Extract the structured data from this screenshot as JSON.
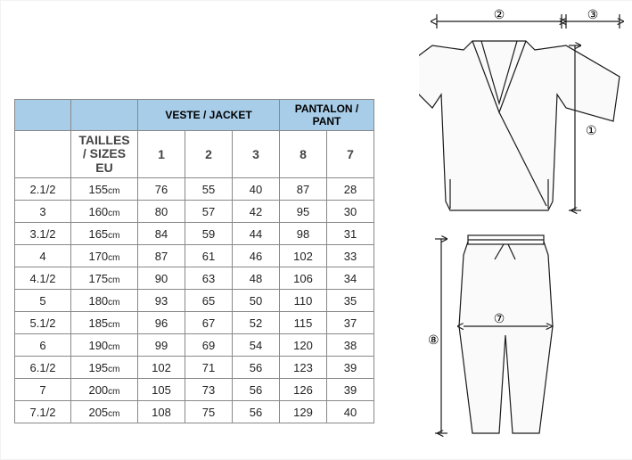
{
  "headers": {
    "jacket": "VESTE / JACKET",
    "pant": "PANTALON / PANT",
    "sizes_label": "TAILLES / SIZES EU"
  },
  "cols": {
    "jacket": [
      "1",
      "2",
      "3"
    ],
    "pant": [
      "8",
      "7"
    ]
  },
  "rows": [
    {
      "size": "2.1/2",
      "cm": "155",
      "v": [
        "76",
        "55",
        "40",
        "87",
        "28"
      ]
    },
    {
      "size": "3",
      "cm": "160",
      "v": [
        "80",
        "57",
        "42",
        "95",
        "30"
      ]
    },
    {
      "size": "3.1/2",
      "cm": "165",
      "v": [
        "84",
        "59",
        "44",
        "98",
        "31"
      ]
    },
    {
      "size": "4",
      "cm": "170",
      "v": [
        "87",
        "61",
        "46",
        "102",
        "33"
      ]
    },
    {
      "size": "4.1/2",
      "cm": "175",
      "v": [
        "90",
        "63",
        "48",
        "106",
        "34"
      ]
    },
    {
      "size": "5",
      "cm": "180",
      "v": [
        "93",
        "65",
        "50",
        "110",
        "35"
      ]
    },
    {
      "size": "5.1/2",
      "cm": "185",
      "v": [
        "96",
        "67",
        "52",
        "115",
        "37"
      ]
    },
    {
      "size": "6",
      "cm": "190",
      "v": [
        "99",
        "69",
        "54",
        "120",
        "38"
      ]
    },
    {
      "size": "6.1/2",
      "cm": "195",
      "v": [
        "102",
        "71",
        "56",
        "123",
        "39"
      ]
    },
    {
      "size": "7",
      "cm": "200",
      "v": [
        "105",
        "73",
        "56",
        "126",
        "39"
      ]
    },
    {
      "size": "7.1/2",
      "cm": "205",
      "v": [
        "108",
        "75",
        "56",
        "129",
        "40"
      ]
    }
  ],
  "diagram_labels": {
    "m1": "①",
    "m2": "②",
    "m3": "③",
    "m7": "⑦",
    "m8": "⑧"
  },
  "colors": {
    "header_bg": "#a8cde8",
    "border": "#888888",
    "line": "#1a1a1a"
  }
}
